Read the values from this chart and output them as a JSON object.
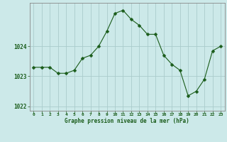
{
  "hours": [
    0,
    1,
    2,
    3,
    4,
    5,
    6,
    7,
    8,
    9,
    10,
    11,
    12,
    13,
    14,
    15,
    16,
    17,
    18,
    19,
    20,
    21,
    22,
    23
  ],
  "pressure": [
    1023.3,
    1023.3,
    1023.3,
    1023.1,
    1023.1,
    1023.2,
    1023.6,
    1023.7,
    1024.0,
    1024.5,
    1025.1,
    1025.2,
    1024.9,
    1024.7,
    1024.4,
    1024.4,
    1023.7,
    1023.4,
    1023.2,
    1022.35,
    1022.5,
    1022.9,
    1023.85,
    1024.0
  ],
  "line_color": "#1a5c1a",
  "marker": "D",
  "marker_size": 2.5,
  "bg_color": "#cce9e9",
  "grid_color": "#aacccc",
  "xlabel": "Graphe pression niveau de la mer (hPa)",
  "xlabel_color": "#1a5c1a",
  "tick_color": "#1a5c1a",
  "ylim": [
    1021.85,
    1025.45
  ],
  "yticks": [
    1022,
    1023,
    1024
  ],
  "xlim": [
    -0.5,
    23.5
  ],
  "xticks": [
    0,
    1,
    2,
    3,
    4,
    5,
    6,
    7,
    8,
    9,
    10,
    11,
    12,
    13,
    14,
    15,
    16,
    17,
    18,
    19,
    20,
    21,
    22,
    23
  ]
}
